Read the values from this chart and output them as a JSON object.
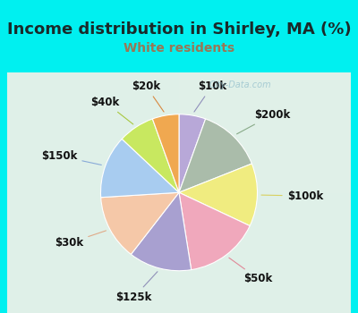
{
  "title": "Income distribution in Shirley, MA (%)",
  "subtitle": "White residents",
  "title_color": "#1a2a2a",
  "subtitle_color": "#997755",
  "background_outer": "#00f0f0",
  "watermark": "City-Data.com",
  "labels": [
    "$10k",
    "$200k",
    "$100k",
    "$50k",
    "$125k",
    "$30k",
    "$150k",
    "$40k",
    "$20k"
  ],
  "values": [
    5.5,
    13.5,
    13.0,
    15.5,
    13.0,
    13.5,
    13.0,
    7.5,
    5.5
  ],
  "colors": [
    "#b8a8d8",
    "#aabcaa",
    "#f0ec80",
    "#f0a8bc",
    "#a8a0d0",
    "#f5c8a8",
    "#a8ccf0",
    "#c8e860",
    "#f0a850"
  ],
  "line_colors": [
    "#9090bb",
    "#88aa88",
    "#d8d060",
    "#e08898",
    "#9090b8",
    "#e0aa88",
    "#88aad8",
    "#a8c840",
    "#d88840"
  ],
  "label_fontsize": 8.5,
  "title_fontsize": 13,
  "subtitle_fontsize": 10
}
